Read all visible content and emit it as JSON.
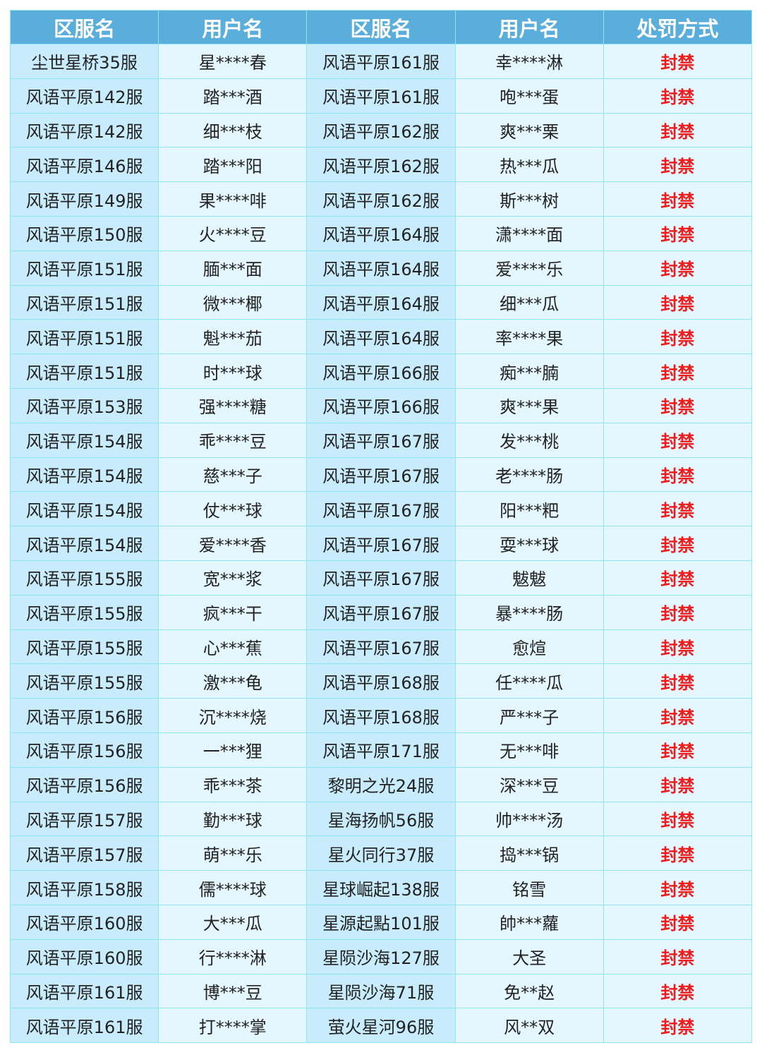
{
  "headers": [
    "区服名",
    "用户名",
    "区服名",
    "用户名",
    "处罚方式"
  ],
  "colors": {
    "header_bg": "#5aaedc",
    "penalty_text": "#ee1c1c",
    "border": "#8ee6f2"
  },
  "rows": [
    [
      "尘世星桥35服",
      "星****春",
      "风语平原161服",
      "幸****淋",
      "封禁"
    ],
    [
      "风语平原142服",
      "踏***酒",
      "风语平原161服",
      "咆***蛋",
      "封禁"
    ],
    [
      "风语平原142服",
      "细***枝",
      "风语平原162服",
      "爽***栗",
      "封禁"
    ],
    [
      "风语平原146服",
      "踏***阳",
      "风语平原162服",
      "热***瓜",
      "封禁"
    ],
    [
      "风语平原149服",
      "果****啡",
      "风语平原162服",
      "斯***树",
      "封禁"
    ],
    [
      "风语平原150服",
      "火****豆",
      "风语平原164服",
      "潇****面",
      "封禁"
    ],
    [
      "风语平原151服",
      "腼***面",
      "风语平原164服",
      "爱****乐",
      "封禁"
    ],
    [
      "风语平原151服",
      "微***椰",
      "风语平原164服",
      "细***瓜",
      "封禁"
    ],
    [
      "风语平原151服",
      "魁***茄",
      "风语平原164服",
      "率****果",
      "封禁"
    ],
    [
      "风语平原151服",
      "时***球",
      "风语平原166服",
      "痴***腩",
      "封禁"
    ],
    [
      "风语平原153服",
      "强****糖",
      "风语平原166服",
      "爽***果",
      "封禁"
    ],
    [
      "风语平原154服",
      "乖****豆",
      "风语平原167服",
      "发***桃",
      "封禁"
    ],
    [
      "风语平原154服",
      "慈***子",
      "风语平原167服",
      "老****肠",
      "封禁"
    ],
    [
      "风语平原154服",
      "仗***球",
      "风语平原167服",
      "阳***粑",
      "封禁"
    ],
    [
      "风语平原154服",
      "爱****香",
      "风语平原167服",
      "耍***球",
      "封禁"
    ],
    [
      "风语平原155服",
      "宽***浆",
      "风语平原167服",
      "魃魃",
      "封禁"
    ],
    [
      "风语平原155服",
      "疯***干",
      "风语平原167服",
      "暴****肠",
      "封禁"
    ],
    [
      "风语平原155服",
      "心***蕉",
      "风语平原167服",
      "愈煊",
      "封禁"
    ],
    [
      "风语平原155服",
      "激***龟",
      "风语平原168服",
      "任****瓜",
      "封禁"
    ],
    [
      "风语平原156服",
      "沉****烧",
      "风语平原168服",
      "严***子",
      "封禁"
    ],
    [
      "风语平原156服",
      "一***狸",
      "风语平原171服",
      "无***啡",
      "封禁"
    ],
    [
      "风语平原156服",
      "乖***茶",
      "黎明之光24服",
      "深***豆",
      "封禁"
    ],
    [
      "风语平原157服",
      "勤***球",
      "星海扬帆56服",
      "帅****汤",
      "封禁"
    ],
    [
      "风语平原157服",
      "萌***乐",
      "星火同行37服",
      "捣***锅",
      "封禁"
    ],
    [
      "风语平原158服",
      "儒****球",
      "星球崛起138服",
      "铭雪",
      "封禁"
    ],
    [
      "风语平原160服",
      "大***瓜",
      "星源起點101服",
      "帥***蘿",
      "封禁"
    ],
    [
      "风语平原160服",
      "行****淋",
      "星陨沙海127服",
      "大圣",
      "封禁"
    ],
    [
      "风语平原161服",
      "博***豆",
      "星陨沙海71服",
      "免**赵",
      "封禁"
    ],
    [
      "风语平原161服",
      "打****掌",
      "萤火星河96服",
      "风**双",
      "封禁"
    ]
  ]
}
